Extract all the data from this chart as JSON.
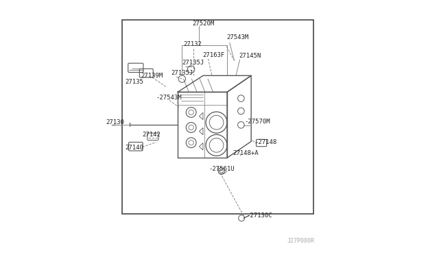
{
  "bg_color": "#ffffff",
  "border_color": "#444444",
  "line_color": "#555555",
  "diagram_color": "#888888",
  "watermark": "J27P000R",
  "border": [
    0.115,
    0.075,
    0.87,
    0.84
  ]
}
